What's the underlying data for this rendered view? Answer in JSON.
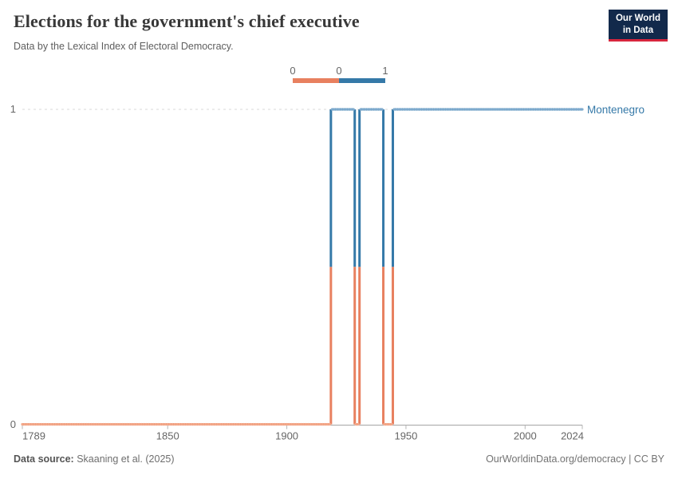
{
  "header": {
    "title": "Elections for the government's chief executive",
    "subtitle": "Data by the Lexical Index of Electoral Democracy.",
    "logo_line1": "Our World",
    "logo_line2": "in Data",
    "logo_bg": "#12294b",
    "logo_accent": "#d7263d"
  },
  "legend": {
    "tick_labels": [
      "0",
      "0",
      "1"
    ],
    "segments": [
      {
        "label": "0",
        "color": "#e8805f"
      },
      {
        "label": "1",
        "color": "#3579a8"
      }
    ]
  },
  "chart_data": {
    "type": "line",
    "style": "step",
    "title": "Elections for the government's chief executive",
    "subtitle": "Data by the Lexical Index of Electoral Democracy.",
    "entity": "Montenegro",
    "entity_color": "#3579a8",
    "xlabel": "",
    "ylabel": "",
    "x_min": 1789,
    "x_max": 2024,
    "x_ticks": [
      "1789",
      "1850",
      "1900",
      "1950",
      "2000",
      "2024"
    ],
    "y_ticks": [
      "0",
      "1"
    ],
    "ylim": [
      0,
      1
    ],
    "grid": "dashed-at-1",
    "legend_position": "top-center",
    "value_colors": {
      "0": "#e8805f",
      "1": "#3579a8"
    },
    "marker_colors": {
      "0": "#f3a98b",
      "1": "#7fabce"
    },
    "segments": [
      {
        "start_year": 1789,
        "end_year": 1918,
        "value": 0
      },
      {
        "start_year": 1919,
        "end_year": 1928,
        "value": 1
      },
      {
        "start_year": 1929,
        "end_year": 1930,
        "value": 0
      },
      {
        "start_year": 1931,
        "end_year": 1940,
        "value": 1
      },
      {
        "start_year": 1941,
        "end_year": 1944,
        "value": 0
      },
      {
        "start_year": 1945,
        "end_year": 2024,
        "value": 1
      }
    ]
  },
  "footer": {
    "source_label": "Data source:",
    "source_value": " Skaaning et al. (2025)",
    "link": "OurWorldinData.org/democracy | CC BY"
  }
}
